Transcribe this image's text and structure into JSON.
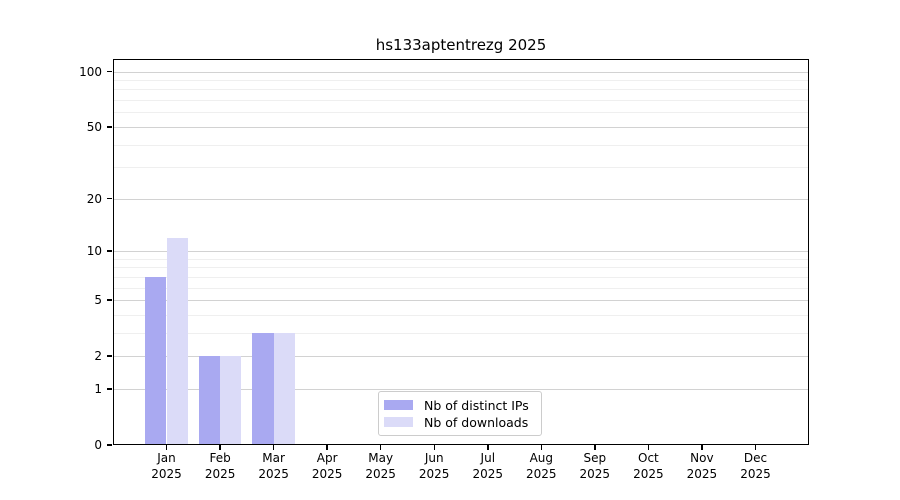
{
  "chart_data": {
    "type": "bar",
    "title": "hs133aptentrezg 2025",
    "categories": [
      "Jan",
      "Feb",
      "Mar",
      "Apr",
      "May",
      "Jun",
      "Jul",
      "Aug",
      "Sep",
      "Oct",
      "Nov",
      "Dec"
    ],
    "x_axis": {
      "year": "2025"
    },
    "series": [
      {
        "name": "Nb of distinct IPs",
        "color": "#a9a9f1",
        "values": [
          7,
          2,
          3,
          0,
          0,
          0,
          0,
          0,
          0,
          0,
          0,
          0
        ]
      },
      {
        "name": "Nb of downloads",
        "color": "#dbdbf8",
        "values": [
          12,
          2,
          3,
          0,
          0,
          0,
          0,
          0,
          0,
          0,
          0,
          0
        ]
      }
    ],
    "y_axis": {
      "scale": "log1p",
      "ylim": [
        0,
        117
      ],
      "ticks": [
        {
          "value": 0,
          "label": "0"
        },
        {
          "value": 1,
          "label": "1"
        },
        {
          "value": 2,
          "label": "2"
        },
        {
          "value": 5,
          "label": "5"
        },
        {
          "value": 10,
          "label": "10"
        },
        {
          "value": 20,
          "label": "20"
        },
        {
          "value": 50,
          "label": "50"
        },
        {
          "value": 100,
          "label": "100"
        }
      ],
      "minor_gridlines": [
        3,
        4,
        6,
        7,
        8,
        9,
        30,
        40,
        60,
        70,
        80,
        90
      ]
    },
    "legend_position": "lower-center-inside",
    "grid": true,
    "colors": {
      "axis": "#000000",
      "major_grid": "#d2d2d2",
      "minor_grid": "#efefef"
    }
  }
}
